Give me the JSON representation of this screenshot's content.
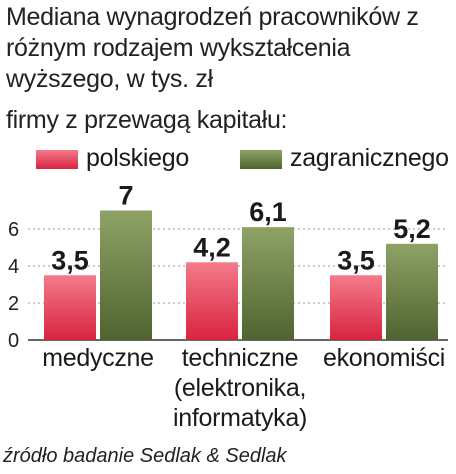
{
  "title": "Mediana wynagrodzeń pracowników z różnym rodzajem wykształcenia wyższego, w tys. zł",
  "subtitle": "firmy z przewagą kapitału:",
  "source": "źródło badanie Sedlak & Sedlak",
  "chart_data": {
    "type": "bar",
    "categories": [
      [
        "medyczne"
      ],
      [
        "techniczne",
        "(elektronika,",
        "informatyka)"
      ],
      [
        "ekonomiści"
      ]
    ],
    "series": [
      {
        "name": "polskiego",
        "values": [
          3.5,
          4.2,
          3.5
        ],
        "value_labels": [
          "3,5",
          "4,2",
          "3,5"
        ],
        "color": "#e23a55"
      },
      {
        "name": "zagranicznego",
        "values": [
          7,
          6.1,
          5.2
        ],
        "value_labels": [
          "7",
          "6,1",
          "5,2"
        ],
        "color": "#5e7438"
      }
    ],
    "ylim": [
      0,
      8
    ],
    "yticks": [
      0,
      2,
      4,
      6
    ],
    "ytick_labels": [
      "0",
      "2",
      "4",
      "6"
    ],
    "grid": true,
    "legend_position": "top-left"
  }
}
